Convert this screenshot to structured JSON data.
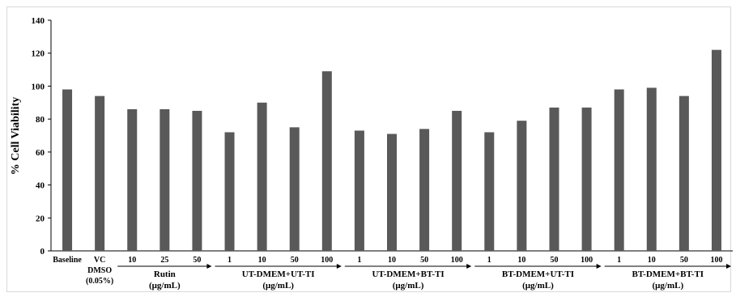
{
  "chart_data": {
    "type": "bar",
    "ylabel": "% Cell Viability",
    "ylim": [
      0,
      140
    ],
    "yticks": [
      "0",
      "20",
      "40",
      "60",
      "80",
      "100",
      "120",
      "140"
    ],
    "bar_color": "#595959",
    "categories": [
      "Baseline",
      "VC",
      "10",
      "25",
      "50",
      "1",
      "10",
      "50",
      "100",
      "1",
      "10",
      "50",
      "100",
      "1",
      "10",
      "50",
      "100",
      "1",
      "10",
      "50",
      "100"
    ],
    "values": [
      98,
      94,
      86,
      86,
      85,
      72,
      90,
      75,
      109,
      73,
      71,
      74,
      85,
      72,
      79,
      87,
      87,
      98,
      99,
      94,
      122
    ],
    "extra_labels": [
      {
        "text": "DMSO"
      },
      {
        "text": "(0.05%)"
      }
    ],
    "groups": [
      {
        "start": 2,
        "end": 4,
        "label": "Rutin",
        "unit": "(μg/mL)"
      },
      {
        "start": 5,
        "end": 8,
        "label": "UT-DMEM+UT-TI",
        "unit": "(μg/mL)"
      },
      {
        "start": 9,
        "end": 12,
        "label": "UT-DMEM+BT-TI",
        "unit": "(μg/mL)"
      },
      {
        "start": 13,
        "end": 16,
        "label": "BT-DMEM+UT-TI",
        "unit": "(μg/mL)"
      },
      {
        "start": 17,
        "end": 20,
        "label": "BT-DMEM+BT-TI",
        "unit": "(μg/mL)"
      }
    ]
  }
}
